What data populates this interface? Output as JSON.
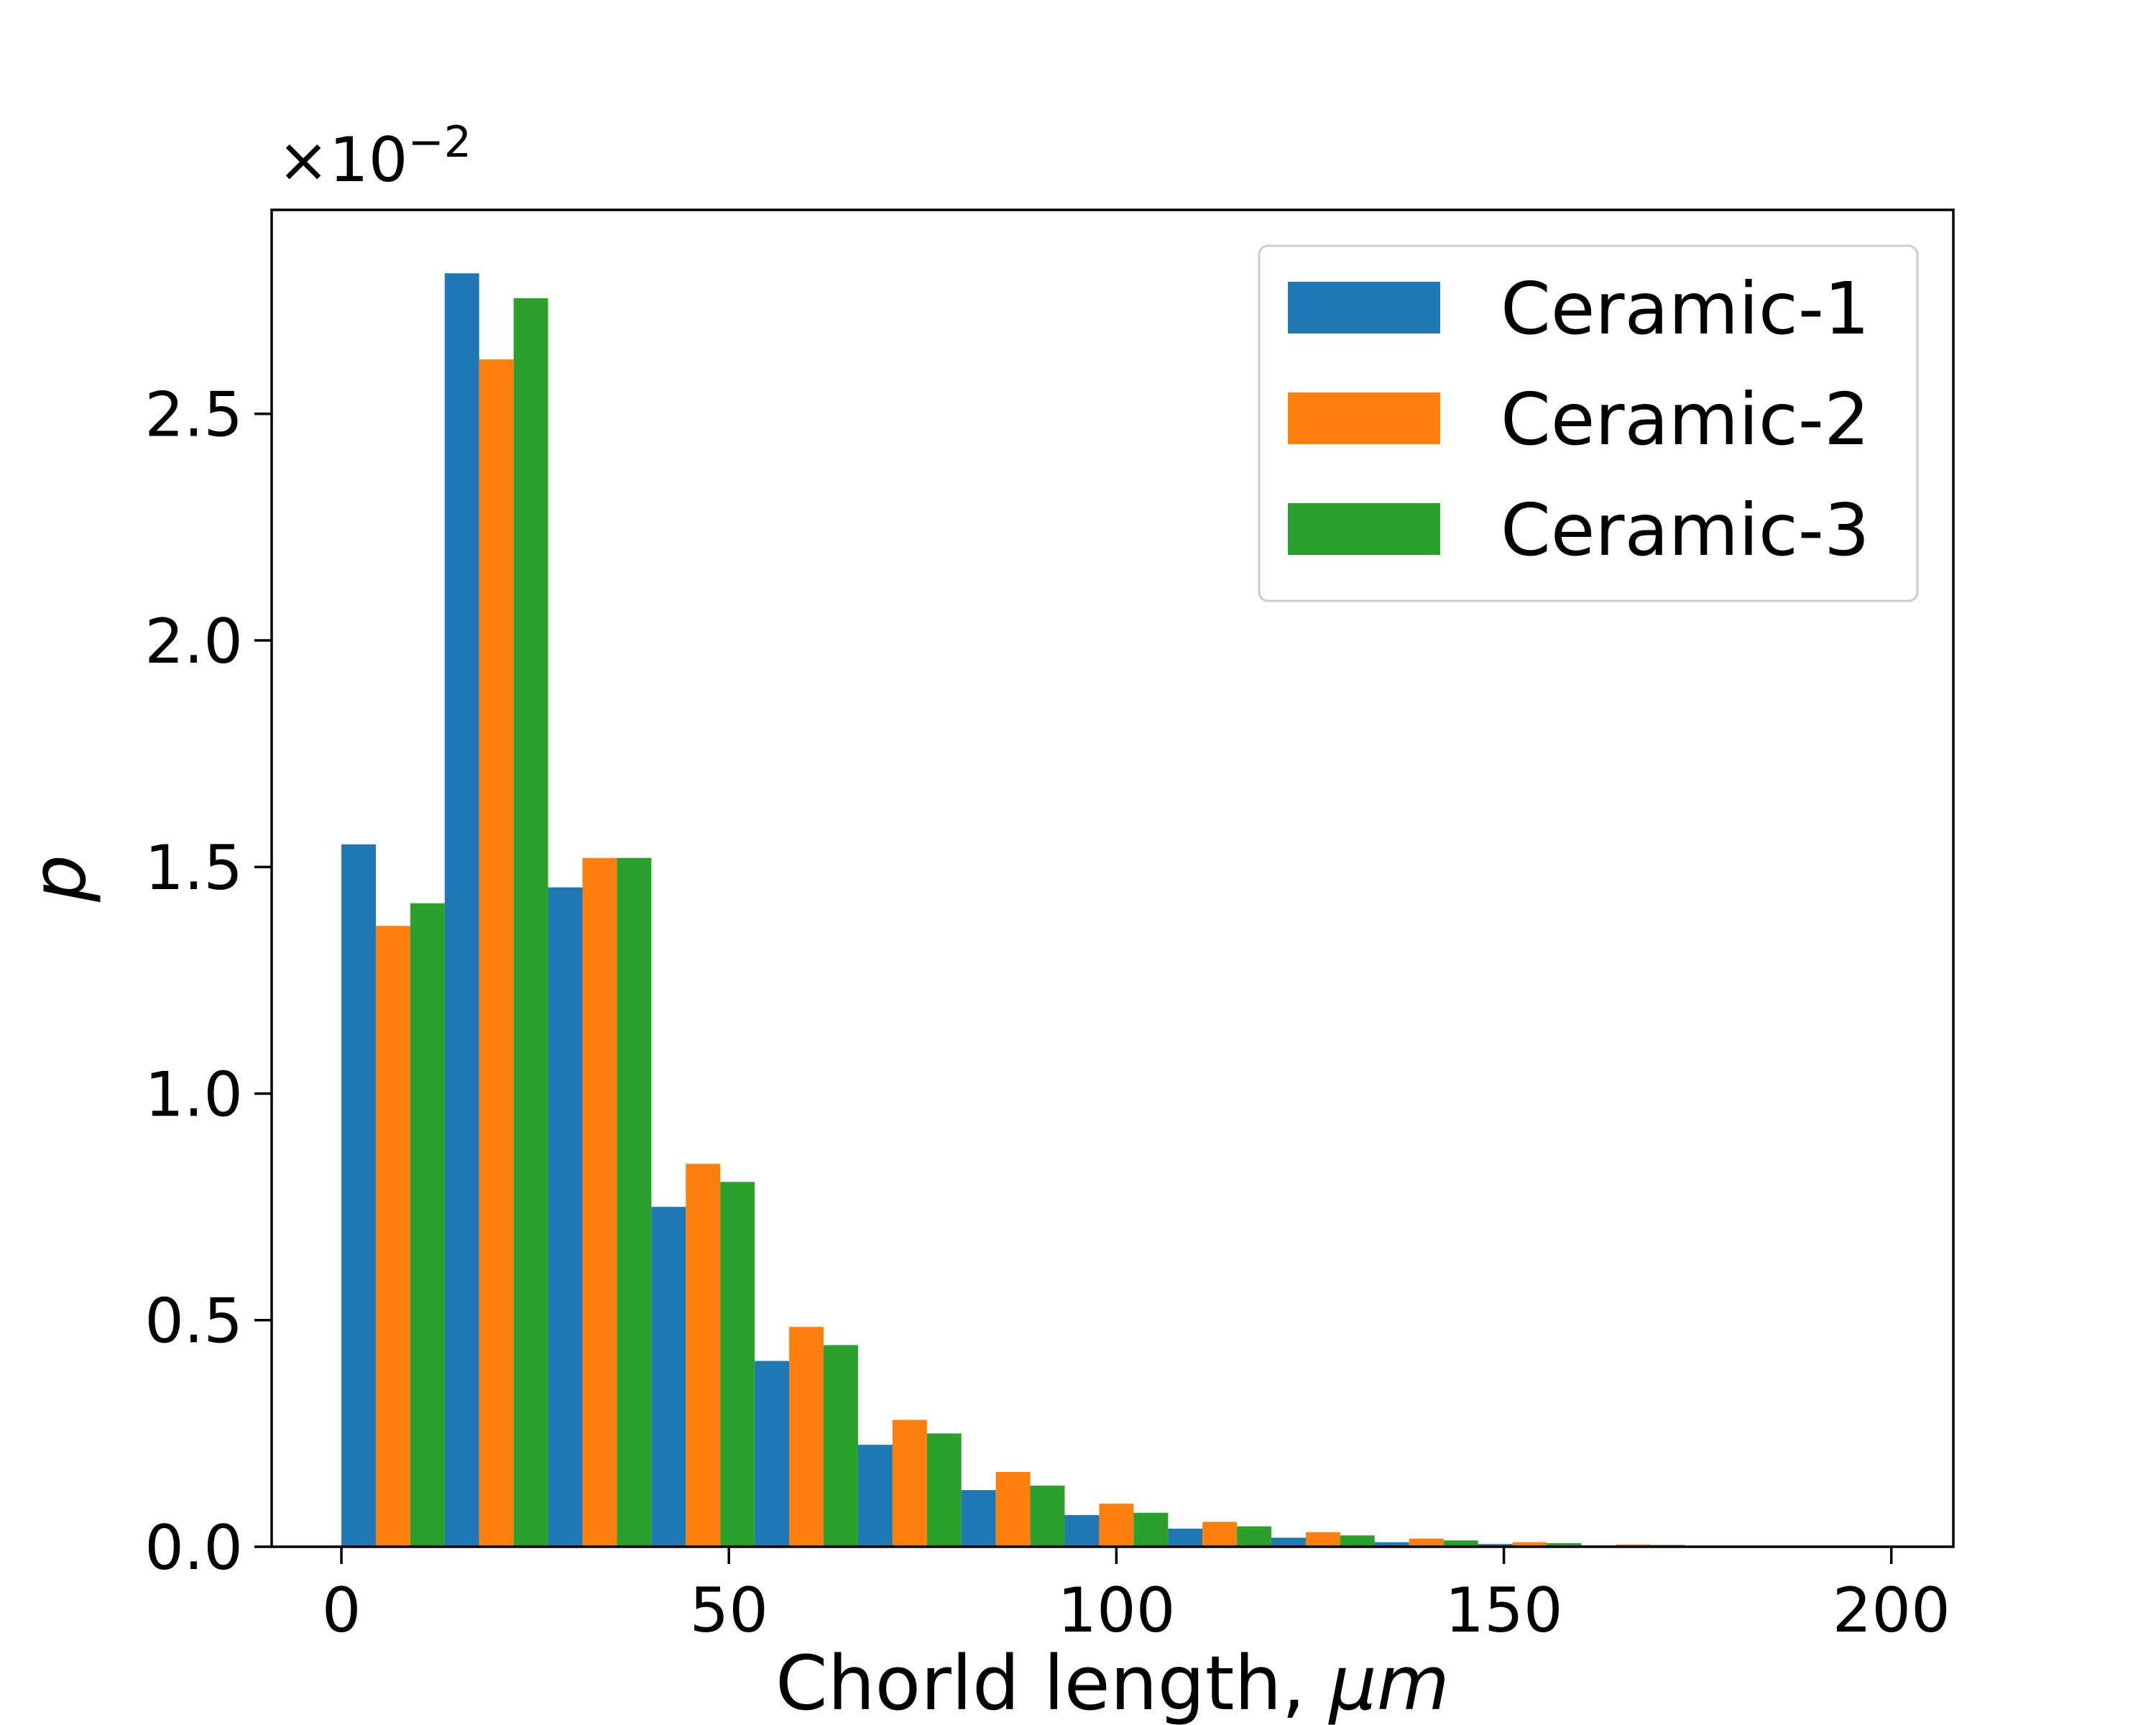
{
  "chart_data": {
    "type": "bar",
    "title": "",
    "xlabel": "Chorld length, ",
    "xlabel_italic": "μm",
    "ylabel": "p",
    "offset_text": {
      "base": "×10",
      "exponent": "−2"
    },
    "xlim": [
      -9,
      208
    ],
    "ylim": [
      0,
      2.95
    ],
    "y_scale_exponent": -2,
    "xticks": [
      0,
      50,
      100,
      150,
      200
    ],
    "xtick_labels": [
      "0",
      "50",
      "100",
      "150",
      "200"
    ],
    "yticks": [
      0.0,
      0.5,
      1.0,
      1.5,
      2.0,
      2.5
    ],
    "ytick_labels": [
      "0.0",
      "0.5",
      "1.0",
      "1.5",
      "2.0",
      "2.5"
    ],
    "grid": false,
    "legend_position": "top-right",
    "bins": [
      [
        0,
        13.33
      ],
      [
        13.33,
        26.67
      ],
      [
        26.67,
        40
      ],
      [
        40,
        53.33
      ],
      [
        53.33,
        66.67
      ],
      [
        66.67,
        80
      ],
      [
        80,
        93.33
      ],
      [
        93.33,
        106.67
      ],
      [
        106.67,
        120
      ],
      [
        120,
        133.33
      ],
      [
        133.33,
        146.67
      ],
      [
        146.67,
        160
      ],
      [
        160,
        173.33
      ],
      [
        173.33,
        186.67
      ],
      [
        186.67,
        200
      ]
    ],
    "series": [
      {
        "name": "Ceramic-1",
        "color": "#1f77b4",
        "values": [
          1.55,
          2.81,
          1.455,
          0.75,
          0.41,
          0.225,
          0.125,
          0.07,
          0.04,
          0.02,
          0.01,
          0.006,
          0.003,
          0.001,
          0.0005
        ]
      },
      {
        "name": "Ceramic-2",
        "color": "#ff7f0e",
        "values": [
          1.37,
          2.62,
          1.52,
          0.845,
          0.485,
          0.28,
          0.165,
          0.095,
          0.055,
          0.032,
          0.018,
          0.01,
          0.005,
          0.002,
          0.001
        ]
      },
      {
        "name": "Ceramic-3",
        "color": "#2ca02c",
        "values": [
          1.42,
          2.755,
          1.52,
          0.805,
          0.445,
          0.25,
          0.135,
          0.075,
          0.045,
          0.025,
          0.014,
          0.008,
          0.004,
          0.0015,
          0.0007
        ]
      }
    ]
  }
}
